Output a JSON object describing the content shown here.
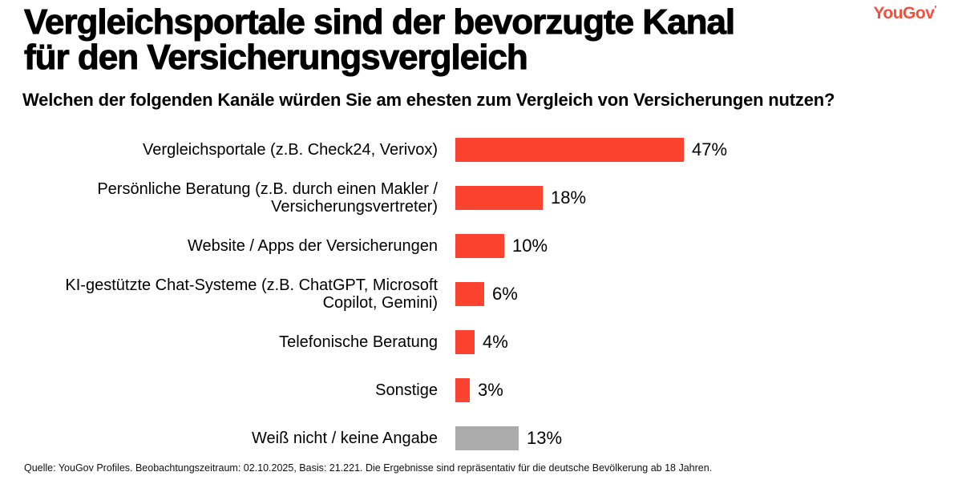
{
  "brand": {
    "logo_text": "YouGov",
    "logo_mark": "'",
    "logo_color": "#F2503C"
  },
  "header": {
    "title": "Vergleichsportale sind der bevorzugte Kanal\nfür den Versicherungsvergleich",
    "subtitle": "Welchen der folgenden Kanäle würden Sie am ehesten zum Vergleich von Versicherungen nutzen?"
  },
  "chart_data": {
    "type": "bar",
    "orientation": "horizontal",
    "title": "Vergleichsportale sind der bevorzugte Kanal für den Versicherungsvergleich",
    "subtitle": "Welchen der folgenden Kanäle würden Sie am ehesten zum Vergleich von Versicherungen nutzen?",
    "categories": [
      "Vergleichsportale (z.B. Check24, Verivox)",
      "Persönliche Beratung (z.B. durch einen Makler /\nVersicherungsvertreter)",
      "Website / Apps der Versicherungen",
      "KI-gestützte Chat-Systeme (z.B. ChatGPT, Microsoft\nCopilot, Gemini)",
      "Telefonische Beratung",
      "Sonstige",
      "Weiß nicht / keine Angabe"
    ],
    "values": [
      47,
      18,
      10,
      6,
      4,
      3,
      13
    ],
    "value_labels": [
      "47%",
      "18%",
      "10%",
      "6%",
      "4%",
      "3%",
      "13%"
    ],
    "colors": [
      "#FC4330",
      "#FC4330",
      "#FC4330",
      "#FC4330",
      "#FC4330",
      "#FC4330",
      "#ABABAB"
    ],
    "unit": "%",
    "grid": false,
    "legend": false,
    "axis_labels": "none",
    "xlim": [
      0,
      50
    ]
  },
  "footer": {
    "source": "Quelle: YouGov Profiles. Beobachtungszeitraum: 02.10.2025, Basis: 21.221. Die Ergebnisse sind repräsentativ für die deutsche Bevölkerung ab 18 Jahren."
  }
}
